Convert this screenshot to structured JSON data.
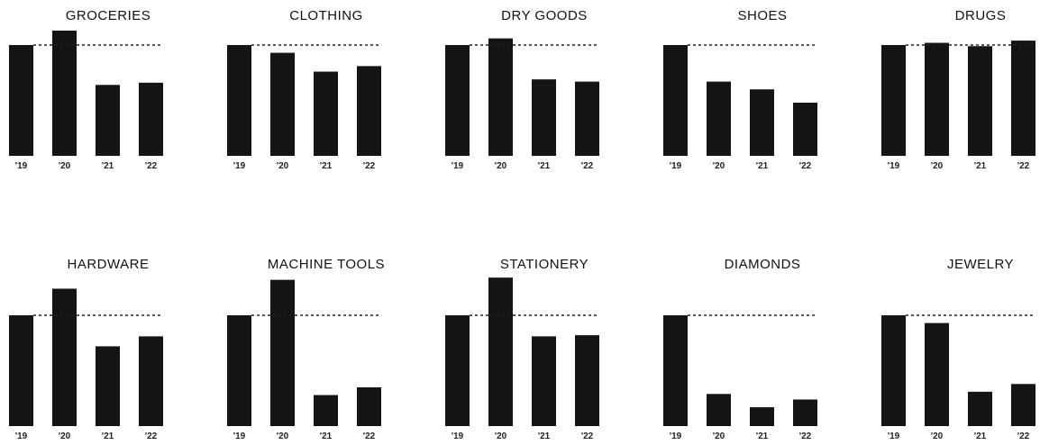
{
  "chart_data": [
    {
      "type": "bar",
      "title": "GROCERIES",
      "categories": [
        "'19",
        "'20",
        "'21",
        "'22"
      ],
      "values": [
        100,
        113,
        64,
        66
      ],
      "color": "#141414"
    },
    {
      "type": "bar",
      "title": "CLOTHING",
      "categories": [
        "'19",
        "'20",
        "'21",
        "'22"
      ],
      "values": [
        100,
        93,
        76,
        81
      ],
      "color": "#141414"
    },
    {
      "type": "bar",
      "title": "DRY GOODS",
      "categories": [
        "'19",
        "'20",
        "'21",
        "'22"
      ],
      "values": [
        100,
        106,
        69,
        67
      ],
      "color": "#141414"
    },
    {
      "type": "bar",
      "title": "SHOES",
      "categories": [
        "'19",
        "'20",
        "'21",
        "'22"
      ],
      "values": [
        100,
        67,
        60,
        48
      ],
      "color": "#141414"
    },
    {
      "type": "bar",
      "title": "DRUGS",
      "categories": [
        "'19",
        "'20",
        "'21",
        "'22"
      ],
      "values": [
        100,
        102,
        99,
        104
      ],
      "color": "#141414"
    },
    {
      "type": "bar",
      "title": "HARDWARE",
      "categories": [
        "'19",
        "'20",
        "'21",
        "'22"
      ],
      "values": [
        100,
        124,
        72,
        81
      ],
      "color": "#141414"
    },
    {
      "type": "bar",
      "title": "MACHINE TOOLS",
      "categories": [
        "'19",
        "'20",
        "'21",
        "'22"
      ],
      "values": [
        100,
        132,
        28,
        35
      ],
      "color": "#141414"
    },
    {
      "type": "bar",
      "title": "STATIONERY",
      "categories": [
        "'19",
        "'20",
        "'21",
        "'22"
      ],
      "values": [
        100,
        134,
        81,
        82
      ],
      "color": "#141414"
    },
    {
      "type": "bar",
      "title": "DIAMONDS",
      "categories": [
        "'19",
        "'20",
        "'21",
        "'22"
      ],
      "values": [
        100,
        29,
        17,
        24
      ],
      "color": "#141414"
    },
    {
      "type": "bar",
      "title": "JEWELRY",
      "categories": [
        "'19",
        "'20",
        "'21",
        "'22"
      ],
      "values": [
        100,
        93,
        31,
        38
      ],
      "color": "#141414"
    }
  ]
}
